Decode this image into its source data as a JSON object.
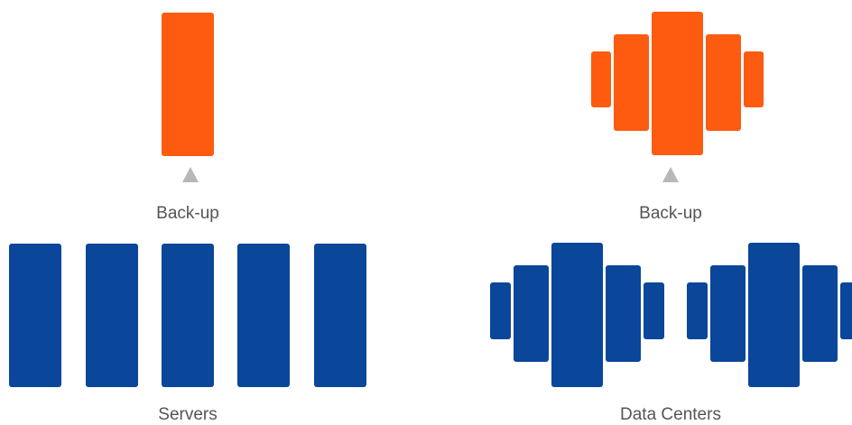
{
  "colors": {
    "backup": "#fd5b10",
    "server": "#0a4699",
    "arrow": "#b8b8b8",
    "text": "#555555"
  },
  "left": {
    "backup_label": "Back-up",
    "servers_label": "Servers",
    "arrow_icon": "triangle-up-icon",
    "server_count": 5
  },
  "right": {
    "backup_label": "Back-up",
    "datacenters_label": "Data Centers",
    "arrow_icon": "triangle-up-icon",
    "datacenter_count": 2
  }
}
